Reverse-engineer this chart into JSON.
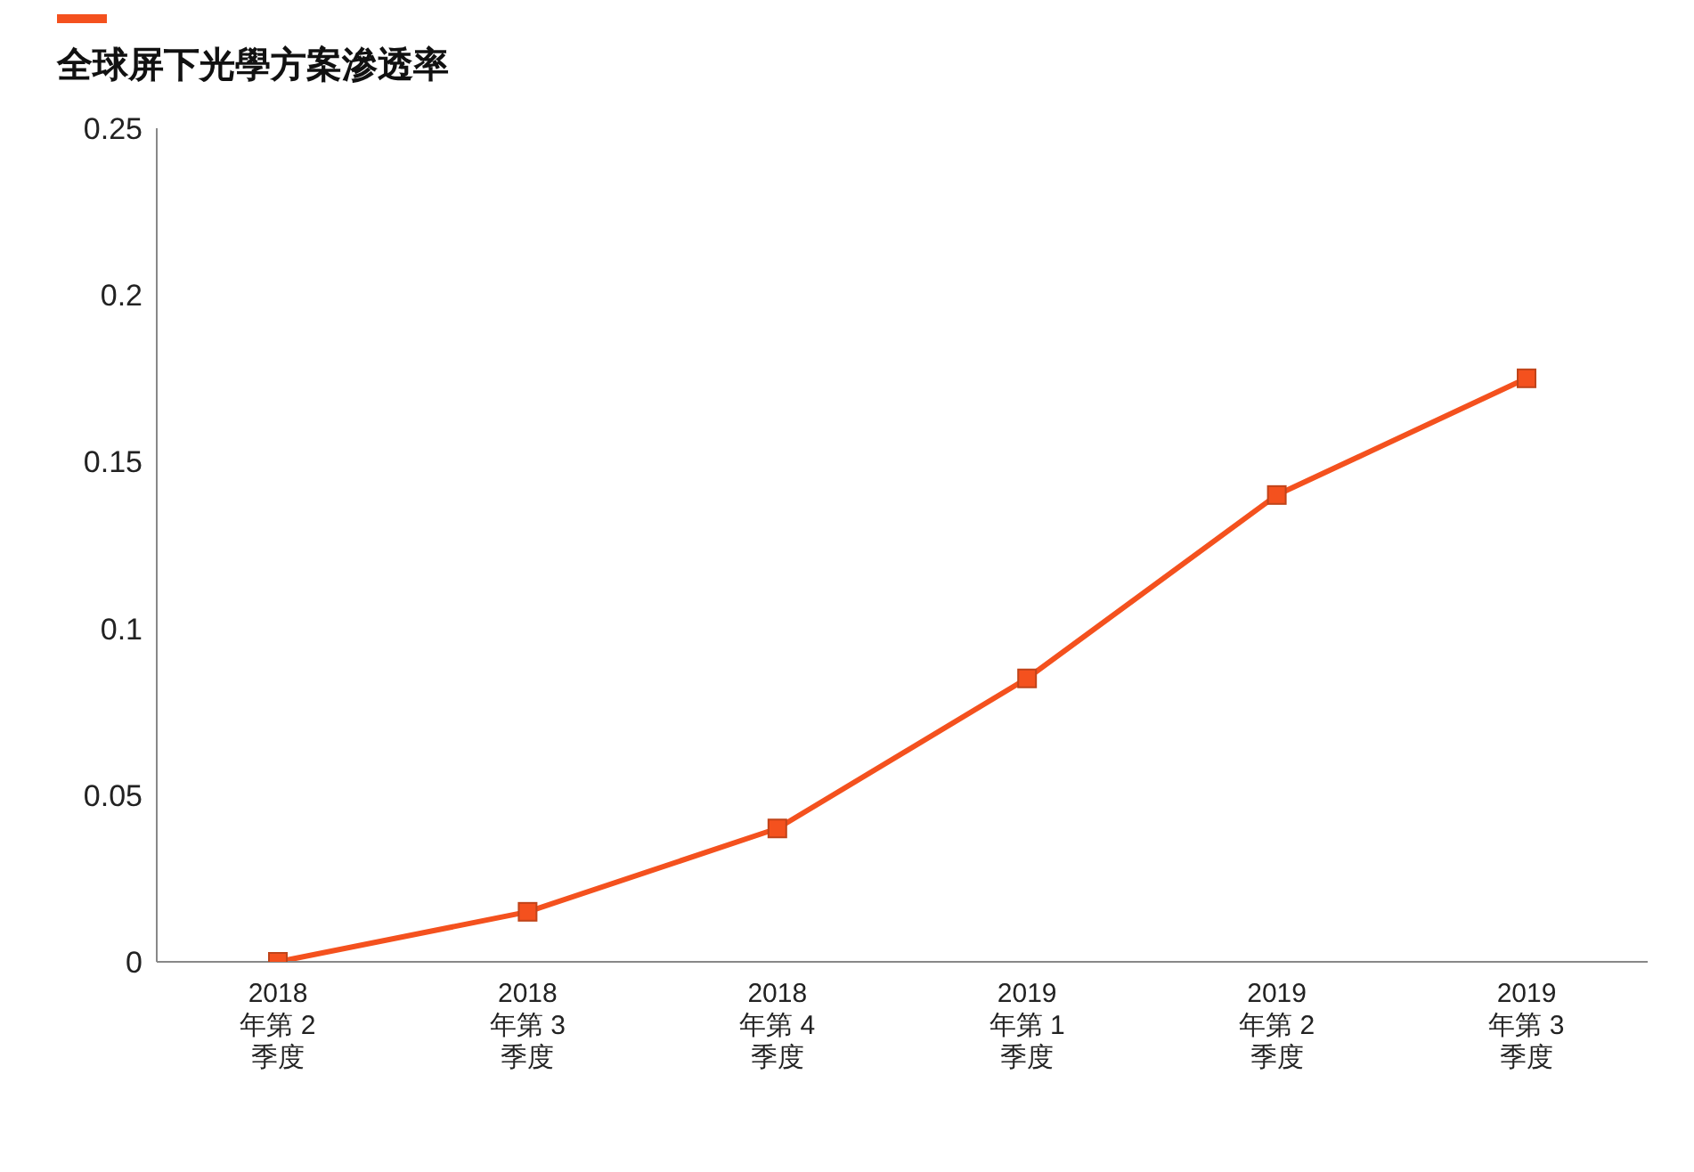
{
  "chart_data": {
    "type": "line",
    "title": "全球屏下光學方案滲透率",
    "categories": [
      "2018 年第 2 季度",
      "2018 年第 3 季度",
      "2018 年第 4 季度",
      "2019 年第 1 季度",
      "2019 年第 2 季度",
      "2019 年第 3 季度"
    ],
    "series": [
      {
        "color": "#f4511e",
        "values": [
          0,
          0.015,
          0.04,
          0.085,
          0.14,
          0.175
        ]
      }
    ],
    "ylim": [
      0,
      0.25
    ],
    "yticks": [
      0,
      0.05,
      0.1,
      0.15,
      0.2,
      0.25
    ],
    "grid": false,
    "legend": false,
    "marker": "square",
    "line_style": "solid"
  }
}
